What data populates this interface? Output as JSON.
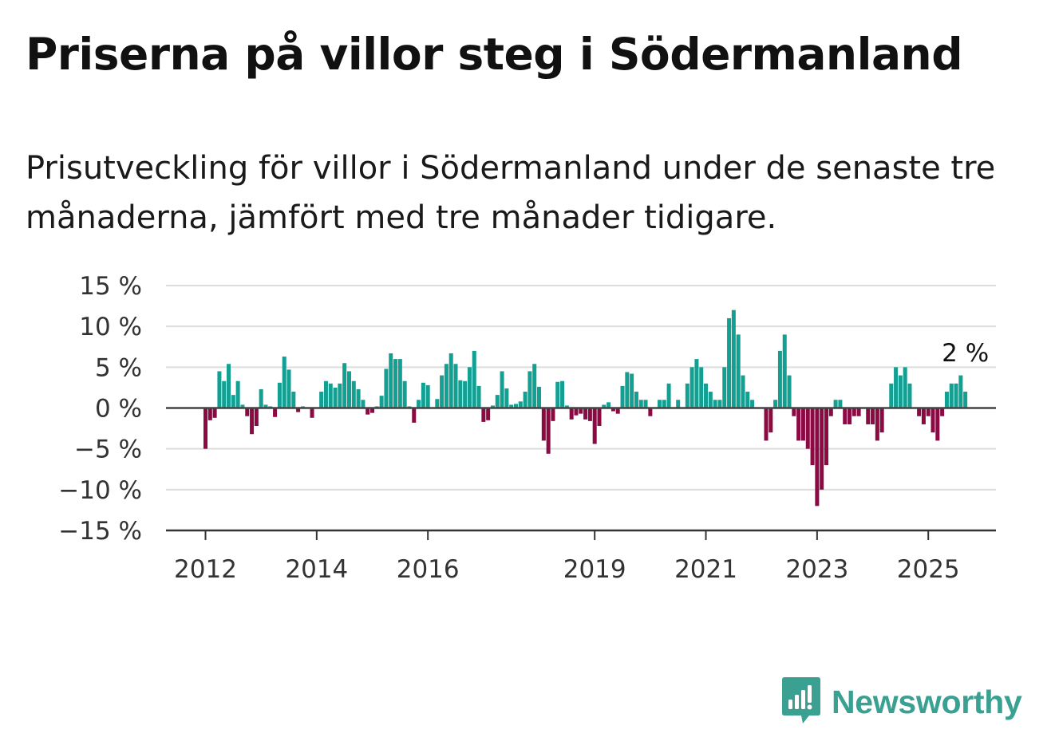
{
  "title": "Priserna på villor steg i Södermanland",
  "subtitle": "Prisutveckling för villor i Södermanland under de senaste tre månaderna, jämfört med tre månader tidigare.",
  "brand": {
    "name": "Newsworthy",
    "icon": "newsworthy-logo-icon",
    "color": "#3aa192"
  },
  "colors": {
    "positive": "#139f91",
    "negative": "#8c0a43",
    "grid": "#dddddd",
    "axis": "#555555"
  },
  "chart_data": {
    "type": "bar",
    "title": "Priserna på villor steg i Södermanland",
    "xlabel": "",
    "ylabel": "",
    "ylim": [
      -15,
      15
    ],
    "y_ticks": [
      {
        "value": 15,
        "label": "15 %"
      },
      {
        "value": 10,
        "label": "10 %"
      },
      {
        "value": 5,
        "label": "5 %"
      },
      {
        "value": 0,
        "label": "0 %"
      },
      {
        "value": -5,
        "label": "−5 %"
      },
      {
        "value": -10,
        "label": "−10 %"
      },
      {
        "value": -15,
        "label": "−15 %"
      }
    ],
    "x_ticks": [
      {
        "value": 2012,
        "label": "2012"
      },
      {
        "value": 2014,
        "label": "2014"
      },
      {
        "value": 2016,
        "label": "2016"
      },
      {
        "value": 2019,
        "label": "2019"
      },
      {
        "value": 2021,
        "label": "2021"
      },
      {
        "value": 2023,
        "label": "2023"
      },
      {
        "value": 2025,
        "label": "2025"
      }
    ],
    "x_start": "2012-01",
    "values": [
      -5,
      -1.5,
      -1.2,
      4.5,
      3.3,
      5.4,
      1.6,
      3.3,
      0.4,
      -1,
      -3.2,
      -2.2,
      2.3,
      0.4,
      0.2,
      -1.1,
      3.1,
      6.3,
      4.7,
      2,
      -0.5,
      0.2,
      0,
      -1.2,
      0.1,
      2,
      3.3,
      3,
      2.5,
      3,
      5.5,
      4.5,
      3.3,
      2.3,
      1,
      -0.8,
      -0.6,
      0.2,
      1.5,
      4.8,
      6.7,
      6,
      6,
      3.3,
      0.2,
      -1.8,
      1,
      3.1,
      2.8,
      -0.1,
      1.1,
      4,
      5.4,
      6.7,
      5.4,
      3.4,
      3.3,
      5,
      7,
      2.7,
      -1.7,
      -1.5,
      0.3,
      1.6,
      4.5,
      2.4,
      0.4,
      0.5,
      0.8,
      2,
      4.5,
      5.4,
      2.6,
      -4,
      -5.6,
      -1.6,
      3.2,
      3.3,
      0.3,
      -1.4,
      -0.9,
      -0.7,
      -1.4,
      -1.6,
      -4.4,
      -2.2,
      0.4,
      0.7,
      -0.4,
      -0.7,
      2.7,
      4.4,
      4.2,
      2,
      1,
      1,
      -1,
      0,
      1,
      1,
      3,
      0,
      1,
      0,
      3,
      5,
      6,
      5,
      3,
      2,
      1,
      1,
      5,
      11,
      12,
      9,
      4,
      2,
      1,
      0,
      0,
      -4,
      -3,
      1,
      7,
      9,
      4,
      -1,
      -4,
      -4,
      -5,
      -7,
      -12,
      -10,
      -7,
      -1,
      1,
      1,
      -2,
      -2,
      -1,
      -1,
      0,
      -2,
      -2,
      -4,
      -3,
      0,
      3,
      5,
      4,
      5,
      3,
      0,
      -1,
      -2,
      -1,
      -3,
      -4,
      -1,
      2,
      3,
      3,
      4,
      2
    ],
    "annotation": {
      "text": "2 %",
      "value": 2
    },
    "grid": true,
    "legend": "none"
  }
}
